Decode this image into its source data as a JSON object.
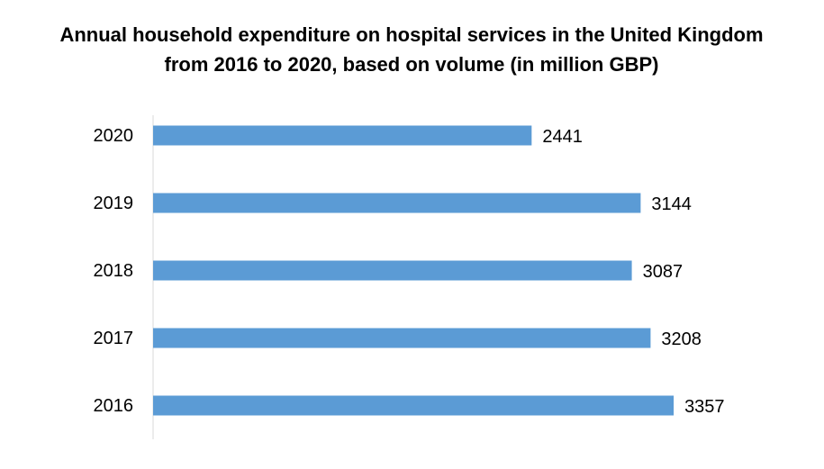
{
  "chart_data": {
    "type": "bar",
    "orientation": "horizontal",
    "title": "Annual household expenditure on hospital services in the United Kingdom from 2016 to 2020, based on volume (in million GBP)",
    "categories": [
      "2020",
      "2019",
      "2018",
      "2017",
      "2016"
    ],
    "values": [
      2441,
      3144,
      3087,
      3208,
      3357
    ],
    "color": "#5b9bd5"
  }
}
